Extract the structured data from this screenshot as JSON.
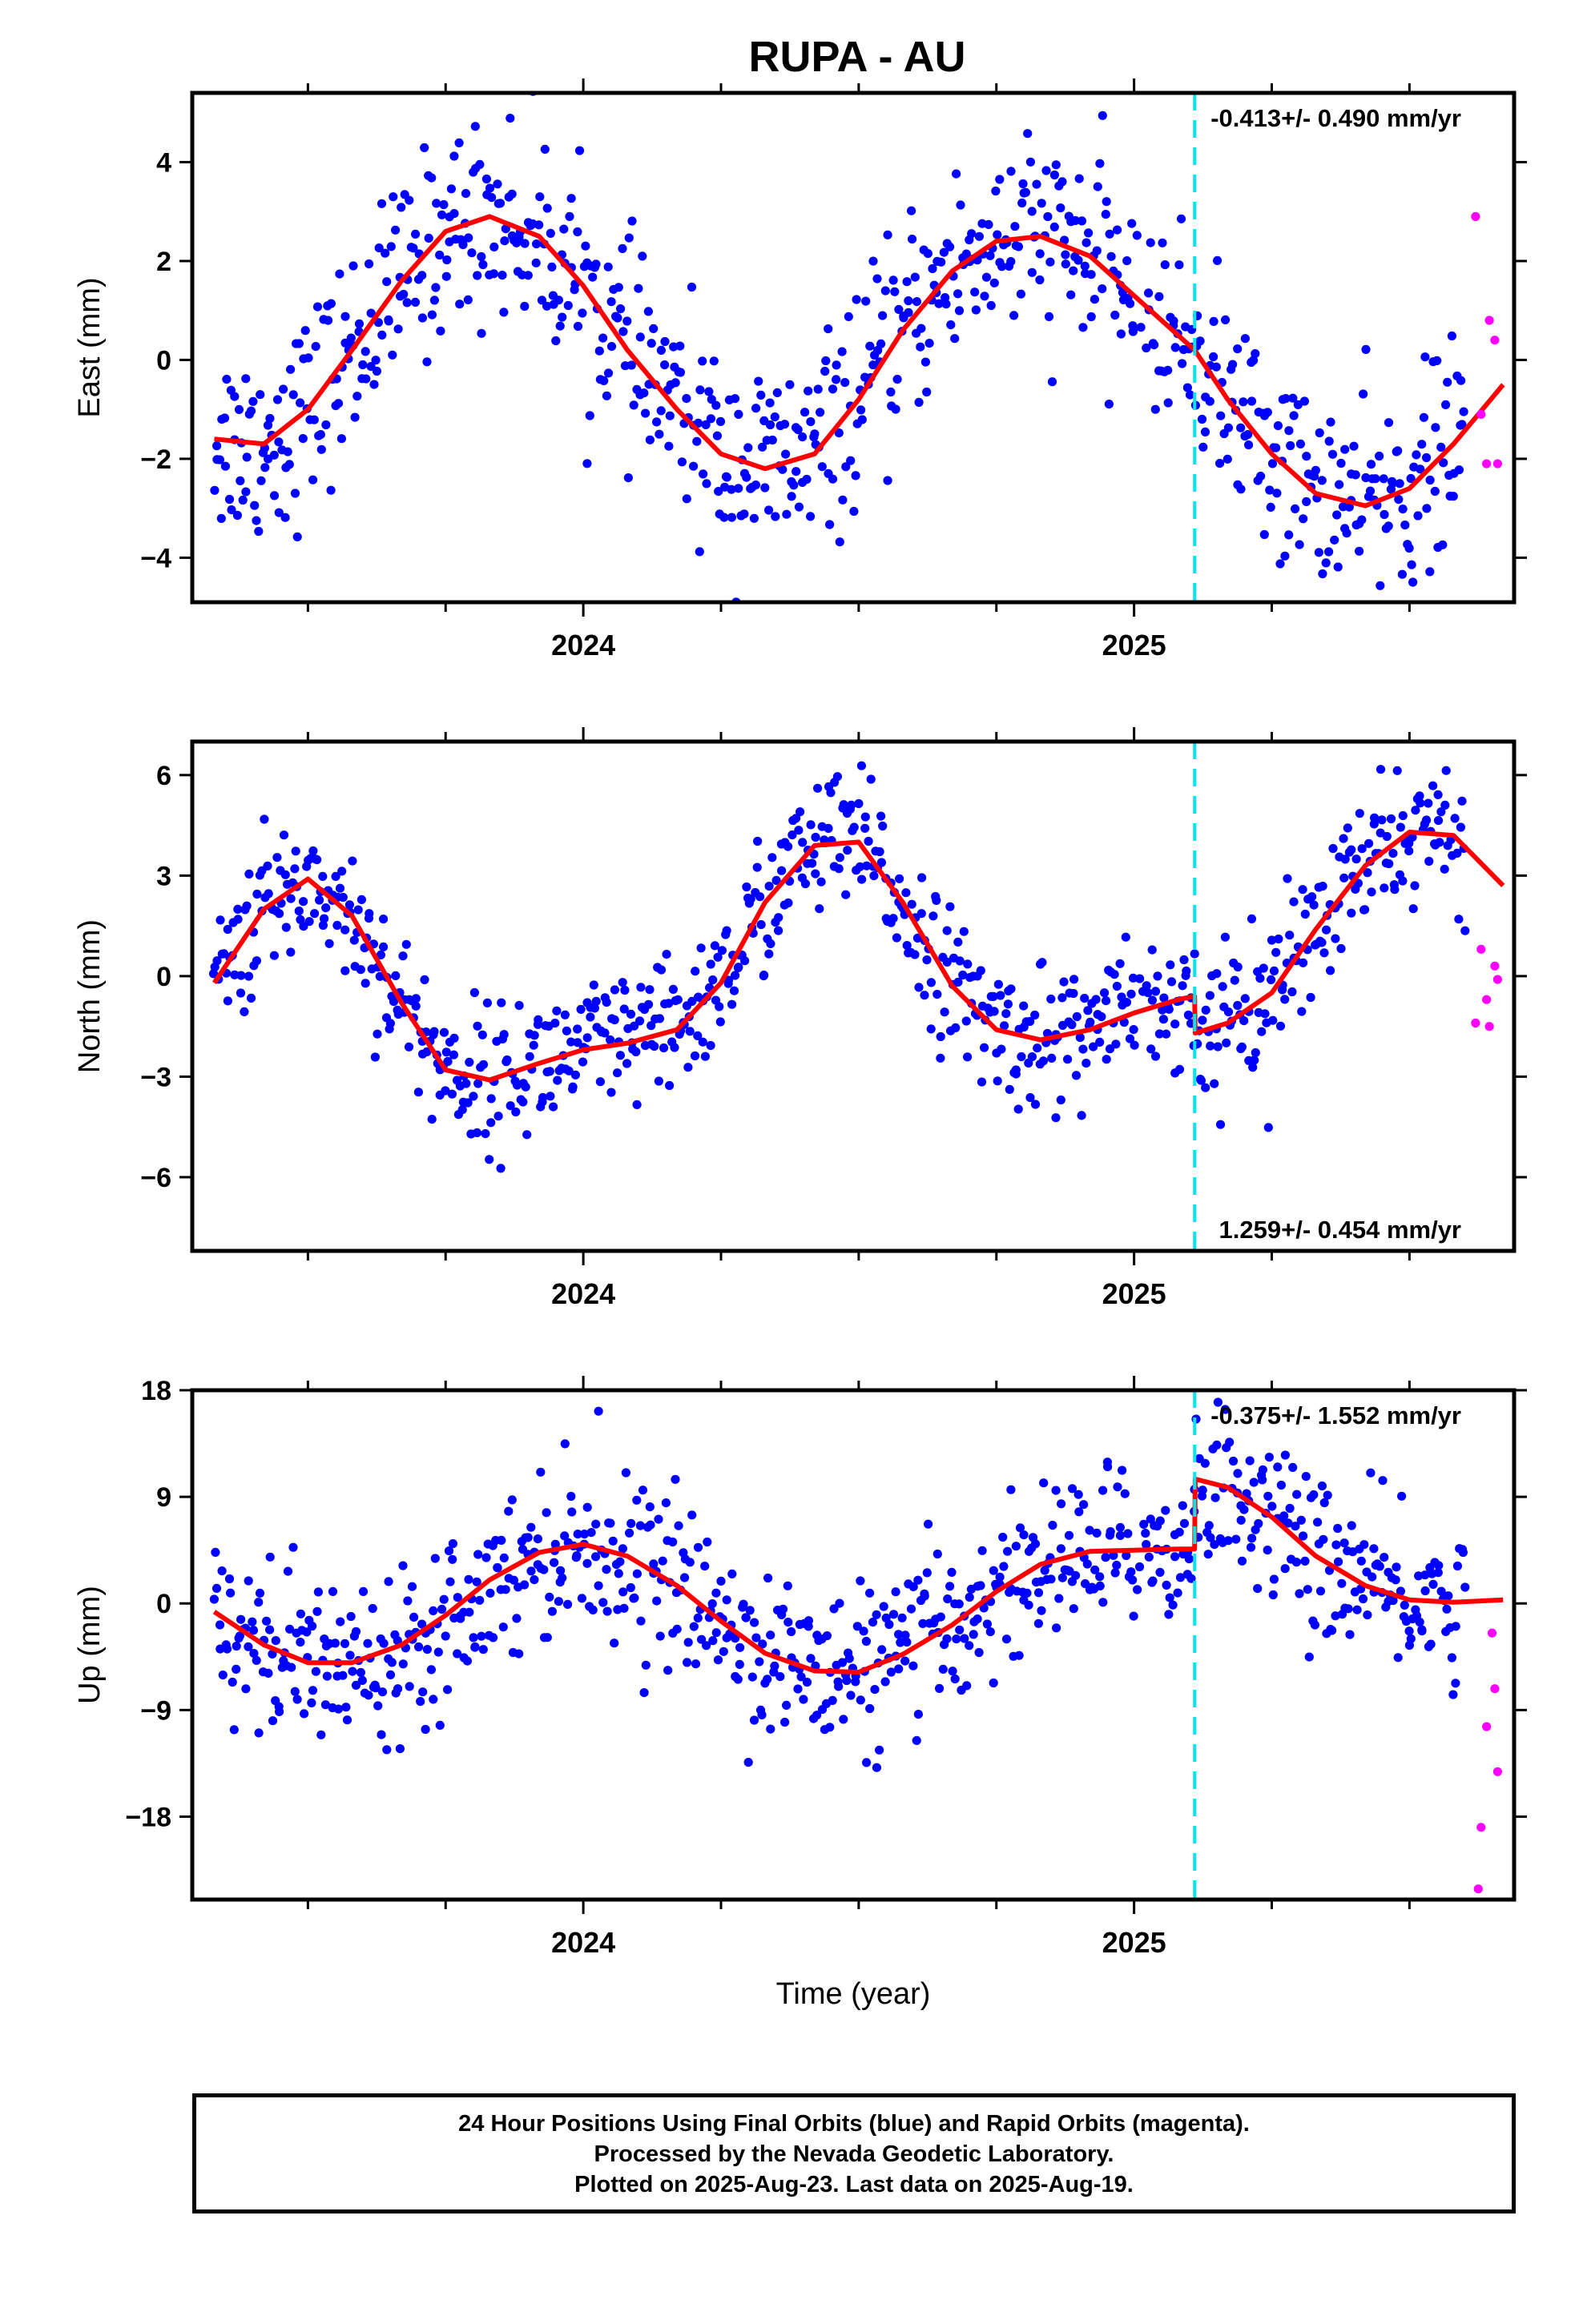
{
  "title": "RUPA - AU",
  "footer": {
    "line1": "24 Hour Positions Using Final Orbits (blue) and Rapid Orbits (magenta).",
    "line2": "Processed by the Nevada Geodetic Laboratory.",
    "line3": "Plotted on 2025-Aug-23. Last data on 2025-Aug-19."
  },
  "colors": {
    "final_points": "#0000ff",
    "rapid_points": "#ff00ff",
    "model": "#ff0000",
    "event_line": "#00e5ee",
    "axes": "#000000"
  },
  "chart_data": [
    {
      "type": "scatter",
      "component": "east",
      "ylabel": "East (mm)",
      "xlabel": "",
      "x_ticks": [
        "2024",
        "2025"
      ],
      "xlim": [
        2023.29,
        2025.69
      ],
      "ylim": [
        -4.9,
        5.4
      ],
      "y_ticks": [
        -4,
        -2,
        0,
        2,
        4
      ],
      "y_tick_labels": [
        "−4",
        "−2",
        "0",
        "2",
        "4"
      ],
      "rate_label": "-0.413+/- 0.490 mm/yr",
      "rate_position": "top-right",
      "event_line_x": 2025.11,
      "model": {
        "x": [
          2023.33,
          2023.42,
          2023.5,
          2023.58,
          2023.67,
          2023.75,
          2023.83,
          2023.92,
          2024.0,
          2024.08,
          2024.17,
          2024.25,
          2024.33,
          2024.42,
          2024.5,
          2024.58,
          2024.67,
          2024.75,
          2024.83,
          2024.92,
          2025.0,
          2025.08,
          2025.11,
          2025.17,
          2025.25,
          2025.33,
          2025.42,
          2025.5,
          2025.58,
          2025.67
        ],
        "y": [
          -1.6,
          -1.7,
          -1.0,
          0.2,
          1.6,
          2.6,
          2.9,
          2.5,
          1.5,
          0.2,
          -1.0,
          -1.9,
          -2.2,
          -1.9,
          -0.8,
          0.6,
          1.8,
          2.4,
          2.5,
          2.1,
          1.3,
          0.5,
          0.2,
          -0.8,
          -1.9,
          -2.7,
          -2.95,
          -2.6,
          -1.7,
          -0.5
        ]
      },
      "rapid_points": {
        "x": [
          2025.62,
          2025.63,
          2025.64,
          2025.645,
          2025.655,
          2025.66
        ],
        "y": [
          2.9,
          -1.1,
          -2.1,
          0.8,
          0.4,
          -2.1
        ]
      },
      "final_points": {
        "source": "generated",
        "count": 780
      }
    },
    {
      "type": "scatter",
      "component": "north",
      "ylabel": "North (mm)",
      "xlabel": "",
      "x_ticks": [
        "2024",
        "2025"
      ],
      "xlim": [
        2023.29,
        2025.69
      ],
      "ylim": [
        -8.2,
        7.0
      ],
      "y_ticks": [
        -6,
        -3,
        0,
        3,
        6
      ],
      "y_tick_labels": [
        "−6",
        "−3",
        "0",
        "3",
        "6"
      ],
      "rate_label": "1.259+/- 0.454 mm/yr",
      "rate_position": "bottom-right",
      "event_line_x": 2025.11,
      "model": {
        "x": [
          2023.33,
          2023.42,
          2023.5,
          2023.58,
          2023.67,
          2023.75,
          2023.83,
          2023.92,
          2024.0,
          2024.08,
          2024.17,
          2024.25,
          2024.33,
          2024.42,
          2024.5,
          2024.58,
          2024.67,
          2024.75,
          2024.83,
          2024.92,
          2025.0,
          2025.08,
          2025.11,
          2025.111,
          2025.17,
          2025.25,
          2025.33,
          2025.42,
          2025.5,
          2025.58,
          2025.67
        ],
        "y": [
          -0.2,
          2.0,
          2.9,
          1.8,
          -0.8,
          -2.8,
          -3.1,
          -2.6,
          -2.2,
          -2.0,
          -1.6,
          -0.2,
          2.2,
          3.9,
          4.0,
          2.2,
          -0.3,
          -1.6,
          -1.9,
          -1.6,
          -1.1,
          -0.7,
          -0.6,
          -1.7,
          -1.4,
          -0.5,
          1.4,
          3.3,
          4.3,
          4.2,
          2.7
        ]
      },
      "rapid_points": {
        "x": [
          2025.62,
          2025.63,
          2025.64,
          2025.645,
          2025.655,
          2025.66
        ],
        "y": [
          -1.4,
          0.8,
          -0.7,
          -1.5,
          0.3,
          -0.1
        ]
      },
      "final_points": {
        "source": "generated",
        "count": 780
      }
    },
    {
      "type": "scatter",
      "component": "up",
      "ylabel": "Up (mm)",
      "xlabel": "Time (year)",
      "x_ticks": [
        "2024",
        "2025"
      ],
      "xlim": [
        2023.29,
        2025.69
      ],
      "ylim": [
        -25,
        18
      ],
      "y_ticks": [
        -18,
        -9,
        0,
        9,
        18
      ],
      "y_tick_labels": [
        "−18",
        "−9",
        "0",
        "9",
        "18"
      ],
      "rate_label": "-0.375+/- 1.552 mm/yr",
      "rate_position": "top-right",
      "event_line_x": 2025.11,
      "model": {
        "x": [
          2023.33,
          2023.42,
          2023.5,
          2023.58,
          2023.67,
          2023.75,
          2023.83,
          2023.92,
          2024.0,
          2024.08,
          2024.17,
          2024.25,
          2024.33,
          2024.42,
          2024.5,
          2024.58,
          2024.67,
          2024.75,
          2024.83,
          2024.92,
          2025.0,
          2025.08,
          2025.11,
          2025.111,
          2025.17,
          2025.25,
          2025.33,
          2025.42,
          2025.5,
          2025.58,
          2025.67
        ],
        "y": [
          -0.7,
          -3.5,
          -5.0,
          -5.0,
          -3.5,
          -1.0,
          2.0,
          4.3,
          5.0,
          4.0,
          1.5,
          -1.5,
          -4.2,
          -5.7,
          -5.8,
          -4.3,
          -1.8,
          1.0,
          3.3,
          4.4,
          4.5,
          4.6,
          4.6,
          10.5,
          9.8,
          7.3,
          4.0,
          1.5,
          0.3,
          0.1,
          0.3
        ]
      },
      "rapid_points": {
        "x": [
          2025.625,
          2025.63,
          2025.64,
          2025.65,
          2025.655,
          2025.66
        ],
        "y": [
          -24.1,
          -18.9,
          -10.4,
          -2.5,
          -7.2,
          -14.2
        ]
      },
      "final_points": {
        "source": "generated",
        "count": 780
      }
    }
  ]
}
